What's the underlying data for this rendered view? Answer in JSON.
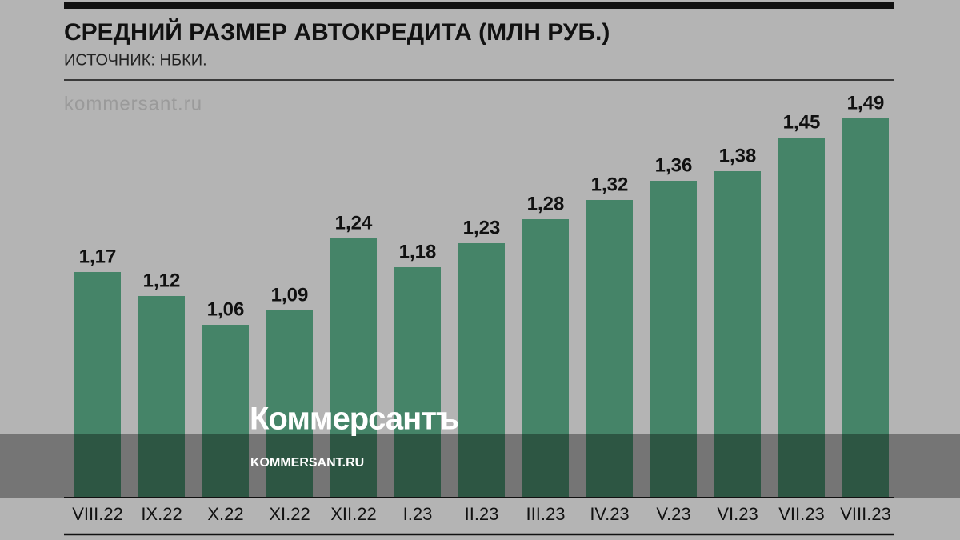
{
  "chart_data": {
    "type": "bar",
    "title": "СРЕДНИЙ РАЗМЕР АВТОКРЕДИТА (МЛН РУБ.)",
    "subtitle": "ИСТОЧНИК: НБКИ.",
    "annotation": "kommersant.ru",
    "categories": [
      "VIII.22",
      "IX.22",
      "X.22",
      "XI.22",
      "XII.22",
      "I.23",
      "II.23",
      "III.23",
      "IV.23",
      "V.23",
      "VI.23",
      "VII.23",
      "VIII.23"
    ],
    "values": [
      1.17,
      1.12,
      1.06,
      1.09,
      1.24,
      1.18,
      1.23,
      1.28,
      1.32,
      1.36,
      1.38,
      1.45,
      1.49
    ],
    "value_labels": [
      "1,17",
      "1,12",
      "1,06",
      "1,09",
      "1,24",
      "1,18",
      "1,23",
      "1,28",
      "1,32",
      "1,36",
      "1,38",
      "1,45",
      "1,49"
    ],
    "color": "#458468",
    "ylim": [
      0.7,
      1.55
    ]
  },
  "overlay": {
    "logo": "Коммерсантъ",
    "url": "KOMMERSANT.RU"
  }
}
